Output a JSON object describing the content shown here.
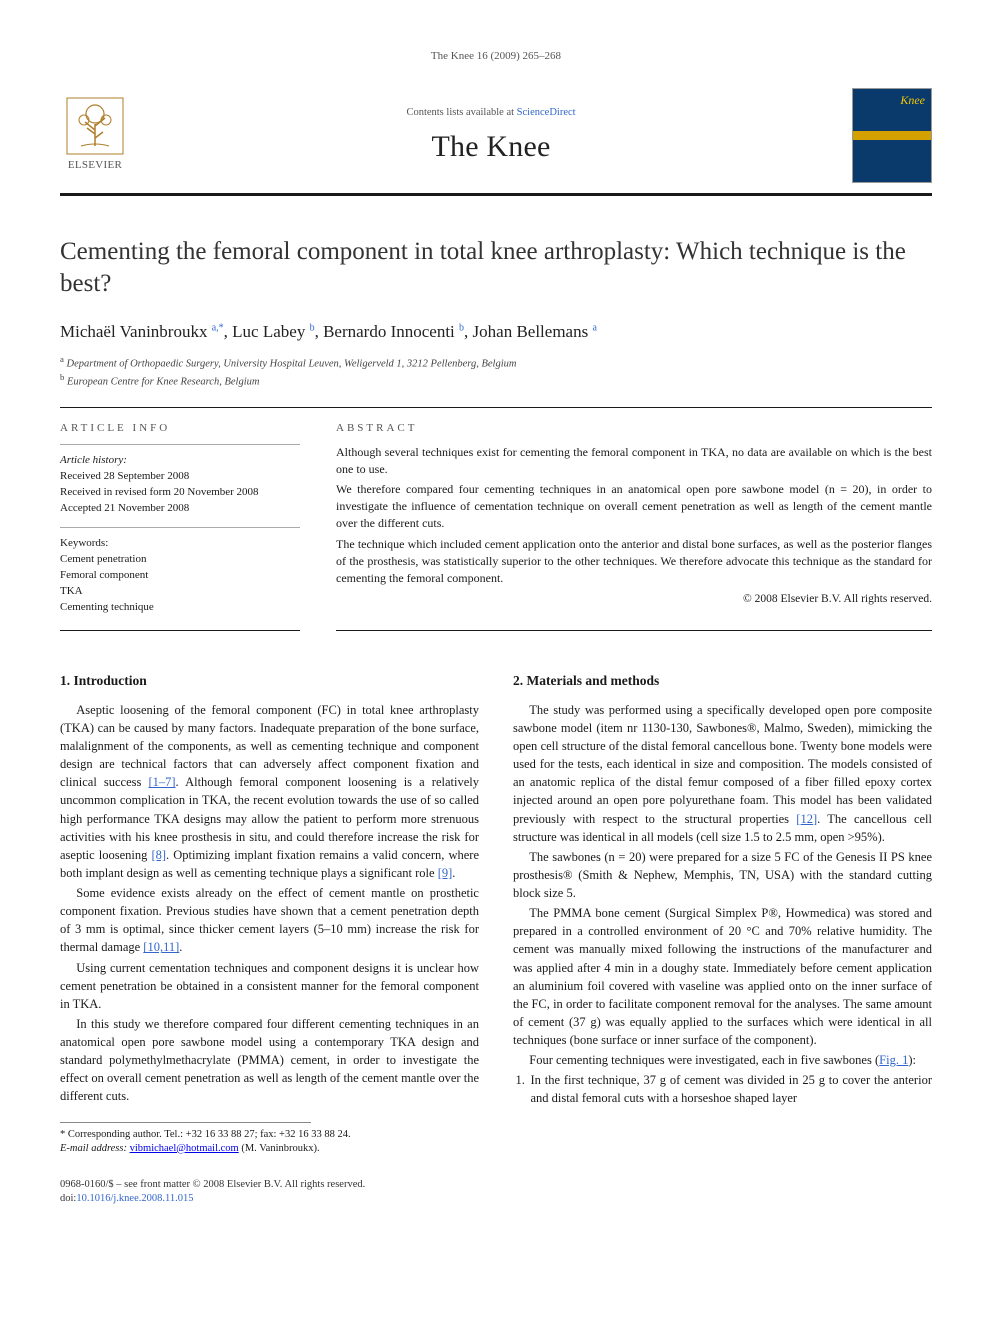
{
  "running_head": "The Knee 16 (2009) 265–268",
  "header": {
    "publisher_brand": "ELSEVIER",
    "contents_prefix": "Contents lists available at ",
    "contents_link_text": "ScienceDirect",
    "journal_name": "The Knee",
    "cover_label": "Knee"
  },
  "title": "Cementing the femoral component in total knee arthroplasty: Which technique is the best?",
  "authors_html": "Michaël Vaninbroukx <sup>a,*</sup>, Luc Labey <sup>b</sup>, Bernardo Innocenti <sup>b</sup>, Johan Bellemans <sup>a</sup>",
  "affiliations": {
    "a": "Department of Orthopaedic Surgery, University Hospital Leuven, Weligerveld 1, 3212 Pellenberg, Belgium",
    "b": "European Centre for Knee Research, Belgium"
  },
  "article_info": {
    "head": "ARTICLE INFO",
    "history_label": "Article history:",
    "received": "Received 28 September 2008",
    "revised": "Received in revised form 20 November 2008",
    "accepted": "Accepted 21 November 2008",
    "keywords_label": "Keywords:",
    "keywords": [
      "Cement penetration",
      "Femoral component",
      "TKA",
      "Cementing technique"
    ]
  },
  "abstract": {
    "head": "ABSTRACT",
    "p1": "Although several techniques exist for cementing the femoral component in TKA, no data are available on which is the best one to use.",
    "p2": "We therefore compared four cementing techniques in an anatomical open pore sawbone model (n = 20), in order to investigate the influence of cementation technique on overall cement penetration as well as length of the cement mantle over the different cuts.",
    "p3": "The technique which included cement application onto the anterior and distal bone surfaces, as well as the posterior flanges of the prosthesis, was statistically superior to the other techniques. We therefore advocate this technique as the standard for cementing the femoral component.",
    "copyright": "© 2008 Elsevier B.V. All rights reserved."
  },
  "sections": {
    "intro_head": "1. Introduction",
    "intro_p1_a": "Aseptic loosening of the femoral component (FC) in total knee arthroplasty (TKA) can be caused by many factors. Inadequate preparation of the bone surface, malalignment of the components, as well as cementing technique and component design are technical factors that can adversely affect component fixation and clinical success ",
    "intro_p1_ref1": "[1–7]",
    "intro_p1_b": ". Although femoral component loosening is a relatively uncommon complication in TKA, the recent evolution towards the use of so called high performance TKA designs may allow the patient to perform more strenuous activities with his knee prosthesis in situ, and could therefore increase the risk for aseptic loosening ",
    "intro_p1_ref2": "[8]",
    "intro_p1_c": ". Optimizing implant fixation remains a valid concern, where both implant design as well as cementing technique plays a significant role ",
    "intro_p1_ref3": "[9]",
    "intro_p1_d": ".",
    "intro_p2_a": "Some evidence exists already on the effect of cement mantle on prosthetic component fixation. Previous studies have shown that a cement penetration depth of 3 mm is optimal, since thicker cement layers (5–10 mm) increase the risk for thermal damage ",
    "intro_p2_ref": "[10,11]",
    "intro_p2_b": ".",
    "intro_p3": "Using current cementation techniques and component designs it is unclear how cement penetration be obtained in a consistent manner for the femoral component in TKA.",
    "intro_p4": "In this study we therefore compared four different cementing techniques in an anatomical open pore sawbone model using a contemporary TKA design and standard polymethylmethacrylate (PMMA) cement, in order to investigate the effect on overall cement penetration as well as length of the cement mantle over the different cuts.",
    "methods_head": "2. Materials and methods",
    "methods_p1_a": "The study was performed using a specifically developed open pore composite sawbone model (item nr 1130-130, Sawbones®, Malmo, Sweden), mimicking the open cell structure of the distal femoral cancellous bone. Twenty bone models were used for the tests, each identical in size and composition. The models consisted of an anatomic replica of the distal femur composed of a fiber filled epoxy cortex injected around an open pore polyurethane foam. This model has been validated previously with respect to the structural properties ",
    "methods_p1_ref": "[12]",
    "methods_p1_b": ". The cancellous cell structure was identical in all models (cell size 1.5 to 2.5 mm, open >95%).",
    "methods_p2": "The sawbones (n = 20) were prepared for a size 5 FC of the Genesis II PS knee prosthesis® (Smith & Nephew, Memphis, TN, USA) with the standard cutting block size 5.",
    "methods_p3": "The PMMA bone cement (Surgical Simplex P®, Howmedica) was stored and prepared in a controlled environment of 20 °C and 70% relative humidity. The cement was manually mixed following the instructions of the manufacturer and was applied after 4 min in a doughy state. Immediately before cement application an aluminium foil covered with vaseline was applied onto on the inner surface of the FC, in order to facilitate component removal for the analyses. The same amount of cement (37 g) was equally applied to the surfaces which were identical in all techniques (bone surface or inner surface of the component).",
    "methods_p4_a": "Four cementing techniques were investigated, each in five sawbones (",
    "methods_p4_ref": "Fig. 1",
    "methods_p4_b": "):",
    "tech_item1": "In the first technique, 37 g of cement was divided in 25 g to cover the anterior and distal femoral cuts with a horseshoe shaped layer"
  },
  "footnote": {
    "corr_label": "Corresponding author.",
    "corr_text": " Tel.: +32 16 33 88 27; fax: +32 16 33 88 24.",
    "email_label": "E-mail address:",
    "email": "vibmichael@hotmail.com",
    "email_tail": " (M. Vaninbroukx)."
  },
  "bottom": {
    "issn_line": "0968-0160/$ – see front matter © 2008 Elsevier B.V. All rights reserved.",
    "doi_prefix": "doi:",
    "doi": "10.1016/j.knee.2008.11.015"
  },
  "colors": {
    "link": "#3366cc",
    "rule": "#1a1a1a",
    "text": "#1a1a1a",
    "muted": "#555555"
  }
}
